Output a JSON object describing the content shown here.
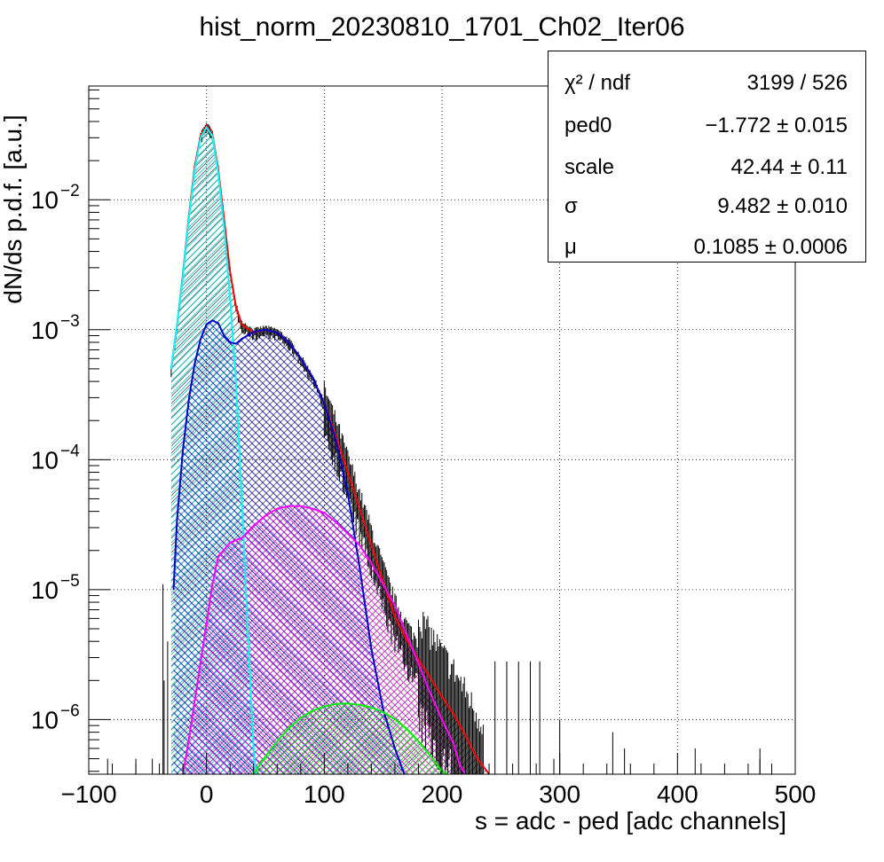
{
  "title": "hist_norm_20230810_1701_Ch02_Iter06",
  "stats": [
    {
      "name": "χ² / ndf",
      "value": "3199 / 526"
    },
    {
      "name": "ped0",
      "value": "−1.772 ± 0.015"
    },
    {
      "name": "scale",
      "value": "42.44 ± 0.11"
    },
    {
      "name": "σ",
      "value": "9.482 ± 0.010"
    },
    {
      "name": "μ",
      "value": "0.1085 ± 0.0006"
    }
  ],
  "chart_data": {
    "type": "line",
    "title": "hist_norm_20230810_1701_Ch02_Iter06",
    "xlabel": "s = adc - ped [adc channels]",
    "ylabel": "dN/ds p.d.f. [a.u.]",
    "xlim": [
      -100,
      500
    ],
    "ylim": [
      3.8e-07,
      0.075
    ],
    "yscale": "log",
    "grid": true,
    "x_ticks": [
      "−100",
      "0",
      "100",
      "200",
      "300",
      "400",
      "500"
    ],
    "y_ticks": [
      {
        "base": "10",
        "exp": "−2",
        "value": 0.01
      },
      {
        "base": "10",
        "exp": "−3",
        "value": 0.001
      },
      {
        "base": "10",
        "exp": "−4",
        "value": 0.0001
      },
      {
        "base": "10",
        "exp": "−5",
        "value": 1e-05
      },
      {
        "base": "10",
        "exp": "−6",
        "value": 1e-06
      }
    ],
    "series": [
      {
        "color": "#ff0000",
        "x": [
          -30,
          -25,
          -20,
          -15,
          -10,
          -5,
          0,
          5,
          10,
          15,
          20,
          25,
          30,
          40,
          50,
          60,
          70,
          80,
          90,
          100,
          110,
          120,
          130,
          140,
          150,
          160,
          170,
          180,
          190,
          200,
          210,
          220,
          230,
          240
        ],
        "y": [
          0.0005,
          0.0011,
          0.0027,
          0.0075,
          0.018,
          0.031,
          0.037,
          0.032,
          0.017,
          0.007,
          0.0028,
          0.0015,
          0.0011,
          0.00095,
          0.001,
          0.00095,
          0.0008,
          0.0006,
          0.00043,
          0.00027,
          0.00015,
          8e-05,
          4.2e-05,
          2.2e-05,
          1.15e-05,
          6.2e-06,
          4.1e-06,
          2.9e-06,
          2.1e-06,
          1.5e-06,
          1.1e-06,
          7.5e-07,
          5e-07,
          3.7e-07
        ]
      },
      {
        "color": "#00ffff",
        "x": [
          -30,
          -25,
          -20,
          -15,
          -10,
          -5,
          0,
          5,
          10,
          15,
          20,
          25,
          30,
          35,
          40,
          42
        ],
        "y": [
          0.0005,
          0.0011,
          0.0026,
          0.0072,
          0.017,
          0.03,
          0.036,
          0.031,
          0.016,
          0.006,
          0.0018,
          0.0004,
          5e-05,
          5e-06,
          6e-07,
          3.8e-07
        ]
      },
      {
        "color": "#0000cc",
        "x": [
          -28,
          -25,
          -20,
          -15,
          -10,
          -5,
          0,
          5,
          10,
          15,
          20,
          25,
          30,
          40,
          50,
          60,
          70,
          80,
          90,
          100,
          110,
          120,
          130,
          140,
          150,
          160,
          165,
          168
        ],
        "y": [
          1e-05,
          3.5e-05,
          0.00012,
          0.00029,
          0.00055,
          0.00085,
          0.0011,
          0.00118,
          0.00112,
          0.0009,
          0.0008,
          0.00078,
          0.00085,
          0.00096,
          0.001,
          0.00095,
          0.0008,
          0.0006,
          0.00043,
          0.00027,
          0.00014,
          5.5e-05,
          1.5e-05,
          3.5e-06,
          1.2e-06,
          6e-07,
          4.5e-07,
          3.8e-07
        ]
      },
      {
        "color": "#ff00ff",
        "x": [
          -20,
          -15,
          -10,
          0,
          5,
          10,
          20,
          30,
          40,
          50,
          60,
          70,
          80,
          90,
          100,
          110,
          120,
          130,
          140,
          150,
          160,
          170,
          180,
          190,
          200,
          210,
          215,
          220
        ],
        "y": [
          3.8e-07,
          7e-07,
          1.4e-06,
          5.5e-06,
          1.1e-05,
          1.8e-05,
          2.3e-05,
          2.5e-05,
          3.1e-05,
          3.7e-05,
          4.2e-05,
          4.4e-05,
          4.4e-05,
          4.2e-05,
          3.9e-05,
          3.3e-05,
          2.7e-05,
          2.2e-05,
          1.6e-05,
          1.1e-05,
          7.5e-06,
          4.5e-06,
          2.7e-06,
          1.6e-06,
          1e-06,
          6.5e-07,
          4.5e-07,
          3.8e-07
        ]
      },
      {
        "color": "#00ee00",
        "x": [
          40,
          50,
          60,
          70,
          80,
          90,
          100,
          110,
          120,
          130,
          140,
          150,
          160,
          170,
          180,
          190,
          200,
          205
        ],
        "y": [
          3.8e-07,
          5.2e-07,
          6.8e-07,
          8.6e-07,
          1.03e-06,
          1.17e-06,
          1.26e-06,
          1.32e-06,
          1.33e-06,
          1.3e-06,
          1.24e-06,
          1.14e-06,
          1.01e-06,
          8.5e-07,
          6.8e-07,
          5.3e-07,
          4e-07,
          3.6e-07
        ]
      }
    ]
  }
}
